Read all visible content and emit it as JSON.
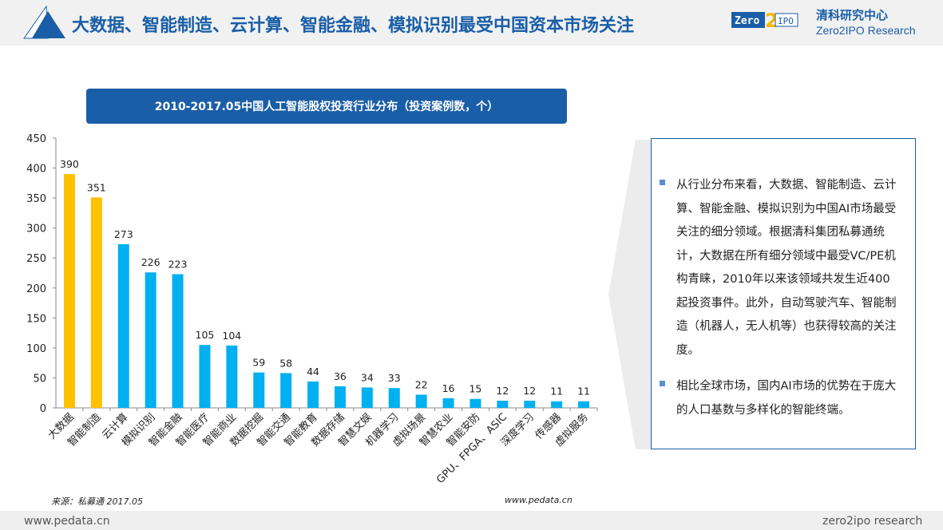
{
  "header": {
    "title": "大数据、智能制造、云计算、智能金融、模拟识别最受中国资本市场关注",
    "logo_text": "Zero2IPO",
    "brand_cn": "清科研究中心",
    "brand_en": "Zero2IPO Research"
  },
  "chart_data": {
    "type": "bar",
    "title": "2010-2017.05中国人工智能股权投资行业分布（投资案例数，个）",
    "categories": [
      "大数据",
      "智能制造",
      "云计算",
      "模拟识别",
      "智能金融",
      "智能医疗",
      "智能商业",
      "数据挖掘",
      "智能交通",
      "智能教育",
      "数据存储",
      "智慧文娱",
      "机器学习",
      "虚拟场景",
      "智慧农业",
      "智能安防",
      "GPU、FPGA、ASIC",
      "深度学习",
      "传感器",
      "虚拟服务"
    ],
    "values": [
      390,
      351,
      273,
      226,
      223,
      105,
      104,
      59,
      58,
      44,
      36,
      34,
      33,
      22,
      16,
      15,
      12,
      12,
      11,
      11
    ],
    "ylim": [
      0,
      450
    ],
    "yticks": [
      0,
      50,
      100,
      150,
      200,
      250,
      300,
      350,
      400,
      450
    ],
    "colors": {
      "highlight": "#ffc000",
      "default": "#00b0f0"
    },
    "highlighted": [
      0,
      1
    ],
    "grid": false
  },
  "panel": {
    "bullets": [
      "从行业分布来看，大数据、智能制造、云计算、智能金融、模拟识别为中国AI市场最受关注的细分领域。根据清科集团私募通统计，大数据在所有细分领域中最受VC/PE机构青睐，2010年以来该领域共发生近400起投资事件。此外，自动驾驶汽车、智能制造（机器人，无人机等）也获得较高的关注度。",
      "相比全球市场，国内AI市场的优势在于庞大的人口基数与多样化的智能终端。"
    ]
  },
  "source": "来源：私募通 2017.05",
  "source_url": "www.pedata.cn",
  "footer": {
    "left": "www.pedata.cn",
    "right": "zero2ipo research"
  }
}
